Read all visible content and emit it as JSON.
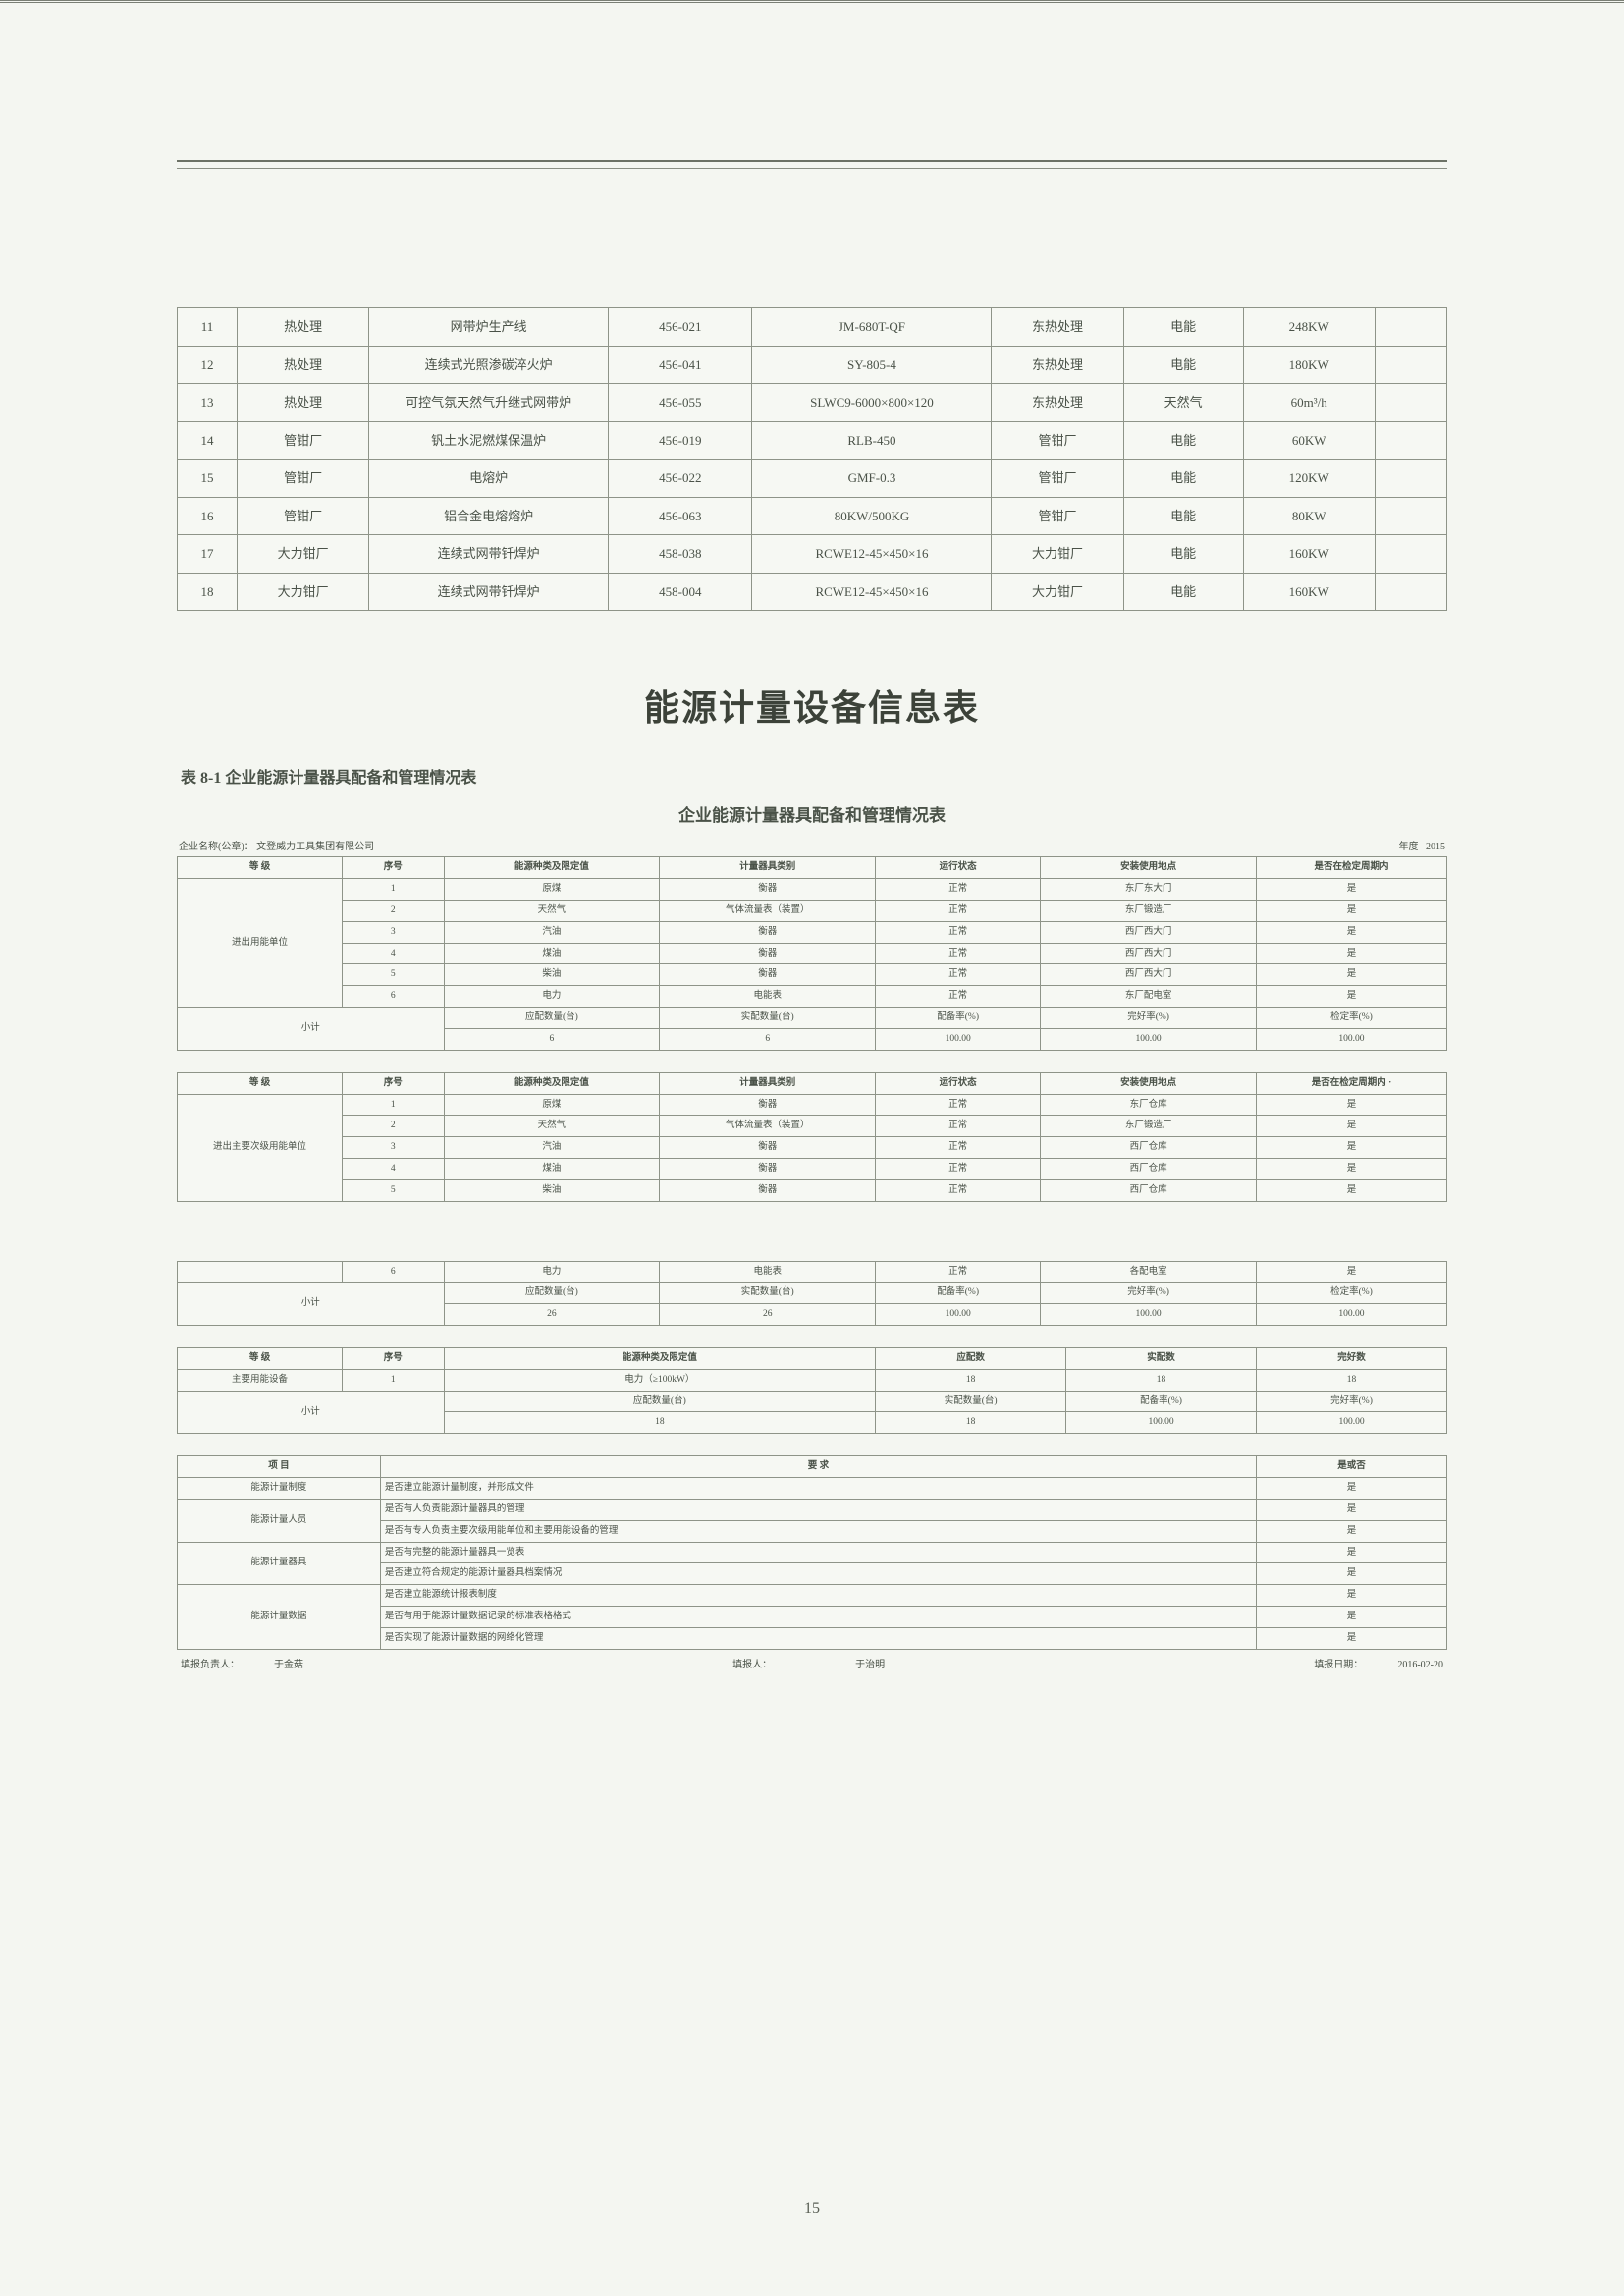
{
  "page_number": "15",
  "table1": {
    "rows": [
      {
        "n": "11",
        "dept": "热处理",
        "name": "网带炉生产线",
        "code": "456-021",
        "model": "JM-680T-QF",
        "loc": "东热处理",
        "etype": "电能",
        "cap": "248KW",
        "note": ""
      },
      {
        "n": "12",
        "dept": "热处理",
        "name": "连续式光照渗碳淬火炉",
        "code": "456-041",
        "model": "SY-805-4",
        "loc": "东热处理",
        "etype": "电能",
        "cap": "180KW",
        "note": ""
      },
      {
        "n": "13",
        "dept": "热处理",
        "name": "可控气氛天然气升继式网带炉",
        "code": "456-055",
        "model": "SLWC9-6000×800×120",
        "loc": "东热处理",
        "etype": "天然气",
        "cap": "60m³/h",
        "note": ""
      },
      {
        "n": "14",
        "dept": "管钳厂",
        "name": "钒土水泥燃煤保温炉",
        "code": "456-019",
        "model": "RLB-450",
        "loc": "管钳厂",
        "etype": "电能",
        "cap": "60KW",
        "note": ""
      },
      {
        "n": "15",
        "dept": "管钳厂",
        "name": "电熔炉",
        "code": "456-022",
        "model": "GMF-0.3",
        "loc": "管钳厂",
        "etype": "电能",
        "cap": "120KW",
        "note": ""
      },
      {
        "n": "16",
        "dept": "管钳厂",
        "name": "铝合金电熔熔炉",
        "code": "456-063",
        "model": "80KW/500KG",
        "loc": "管钳厂",
        "etype": "电能",
        "cap": "80KW",
        "note": ""
      },
      {
        "n": "17",
        "dept": "大力钳厂",
        "name": "连续式网带钎焊炉",
        "code": "458-038",
        "model": "RCWE12-45×450×16",
        "loc": "大力钳厂",
        "etype": "电能",
        "cap": "160KW",
        "note": ""
      },
      {
        "n": "18",
        "dept": "大力钳厂",
        "name": "连续式网带钎焊炉",
        "code": "458-004",
        "model": "RCWE12-45×450×16",
        "loc": "大力钳厂",
        "etype": "电能",
        "cap": "160KW",
        "note": ""
      }
    ]
  },
  "titles": {
    "big": "能源计量设备信息表",
    "sec": "表 8-1 企业能源计量器具配备和管理情况表",
    "sec2": "企业能源计量器具配备和管理情况表"
  },
  "meta": {
    "company_label": "企业名称(公章)：",
    "company": "文登威力工具集团有限公司",
    "year_label": "年度",
    "year": "2015"
  },
  "tableA": {
    "headers": [
      "等 级",
      "序号",
      "能源种类及限定值",
      "计量器具类别",
      "运行状态",
      "安装使用地点",
      "是否在检定周期内"
    ],
    "group_label": "进出用能单位",
    "rows": [
      [
        "",
        "1",
        "原煤",
        "衡器",
        "正常",
        "东厂东大门",
        "是"
      ],
      [
        "",
        "2",
        "天然气",
        "气体流量表（装置）",
        "正常",
        "东厂锻造厂",
        "是"
      ],
      [
        "",
        "3",
        "汽油",
        "衡器",
        "正常",
        "西厂西大门",
        "是"
      ],
      [
        "",
        "4",
        "煤油",
        "衡器",
        "正常",
        "西厂西大门",
        "是"
      ],
      [
        "",
        "5",
        "柴油",
        "衡器",
        "正常",
        "西厂西大门",
        "是"
      ],
      [
        "",
        "6",
        "电力",
        "电能表",
        "正常",
        "东厂配电室",
        "是"
      ]
    ],
    "subtotal": {
      "label": "小计",
      "cols": [
        "应配数量(台)",
        "实配数量(台)",
        "配备率(%)",
        "完好率(%)",
        "检定率(%)"
      ],
      "vals": [
        "6",
        "6",
        "100.00",
        "100.00",
        "100.00"
      ]
    }
  },
  "tableB": {
    "headers": [
      "等 级",
      "序号",
      "能源种类及限定值",
      "计量器具类别",
      "运行状态",
      "安装使用地点",
      "是否在检定周期内 ·"
    ],
    "group_label": "进出主要次级用能单位",
    "rows": [
      [
        "",
        "1",
        "原煤",
        "衡器",
        "正常",
        "东厂仓库",
        "是"
      ],
      [
        "",
        "2",
        "天然气",
        "气体流量表（装置）",
        "正常",
        "东厂锻造厂",
        "是"
      ],
      [
        "",
        "3",
        "汽油",
        "衡器",
        "正常",
        "西厂仓库",
        "是"
      ],
      [
        "",
        "4",
        "煤油",
        "衡器",
        "正常",
        "西厂仓库",
        "是"
      ],
      [
        "",
        "5",
        "柴油",
        "衡器",
        "正常",
        "西厂仓库",
        "是"
      ]
    ]
  },
  "tableC": {
    "row6": [
      "",
      "6",
      "电力",
      "电能表",
      "正常",
      "各配电室",
      "是"
    ],
    "subtotal": {
      "label": "小计",
      "cols": [
        "应配数量(台)",
        "实配数量(台)",
        "配备率(%)",
        "完好率(%)",
        "检定率(%)"
      ],
      "vals": [
        "26",
        "26",
        "100.00",
        "100.00",
        "100.00"
      ]
    }
  },
  "tableD": {
    "headers": [
      "等 级",
      "序号",
      "能源种类及限定值",
      "应配数",
      "实配数",
      "完好数"
    ],
    "row": [
      "主要用能设备",
      "1",
      "电力（≥100kW）",
      "18",
      "18",
      "18"
    ],
    "subtotal": {
      "label": "小计",
      "cols": [
        "应配数量(台)",
        "实配数量(台)",
        "配备率(%)",
        "完好率(%)"
      ],
      "vals": [
        "18",
        "18",
        "100.00",
        "100.00"
      ]
    }
  },
  "tableE": {
    "headers": [
      "项 目",
      "要 求",
      "是或否"
    ],
    "rows": [
      [
        "能源计量制度",
        "是否建立能源计量制度，并形成文件",
        "是"
      ],
      [
        "能源计量人员",
        "是否有人负责能源计量器具的管理",
        "是"
      ],
      [
        "",
        "是否有专人负责主要次级用能单位和主要用能设备的管理",
        "是"
      ],
      [
        "能源计量器具",
        "是否有完整的能源计量器具一览表",
        "是"
      ],
      [
        "",
        "是否建立符合规定的能源计量器具档案情况",
        "是"
      ],
      [
        "能源计量数据",
        "是否建立能源统计报表制度",
        "是"
      ],
      [
        "",
        "是否有用于能源计量数据记录的标准表格格式",
        "是"
      ],
      [
        "",
        "是否实现了能源计量数据的网络化管理",
        "是"
      ]
    ]
  },
  "footer": {
    "a_label": "填报负责人：",
    "a": "于金菇",
    "b_label": "填报人：",
    "b": "于治明",
    "c_label": "填报日期：",
    "c": "2016-02-20"
  },
  "colors": {
    "bg": "#f4f6f1",
    "border": "#8e9488",
    "text": "#4a5248"
  }
}
